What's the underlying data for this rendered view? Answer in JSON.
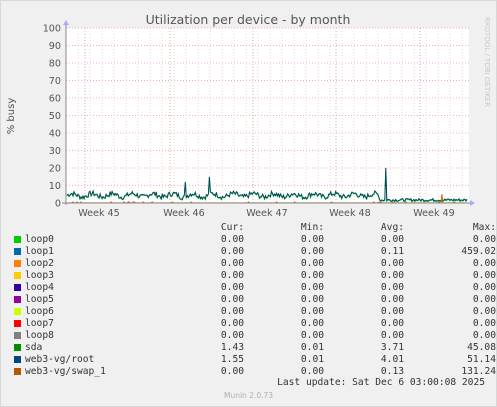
{
  "chart_data": {
    "type": "line",
    "title": "Utilization per device - by month",
    "ylabel": "% busy",
    "side_text": "RRDTOOL / TOBI OETIKER",
    "ylim": [
      0,
      100
    ],
    "yticks": [
      0,
      10,
      20,
      30,
      40,
      50,
      60,
      70,
      80,
      90,
      100
    ],
    "xticks": [
      "Week 45",
      "Week 46",
      "Week 47",
      "Week 48",
      "Week 49"
    ],
    "grid": true,
    "series": [
      {
        "name": "web3-vg/root",
        "color": "#00485e",
        "profile": "Values vary between about 2 and 7 % busy for most of the month, falling to about 1–3 % after Week 48.",
        "spikes": [
          {
            "at": "Week 46",
            "value": 12
          },
          {
            "at": "Week 46",
            "value": 15
          },
          {
            "at": "Week 48",
            "value": 20
          }
        ]
      },
      {
        "name": "web3-vg/swap_1",
        "color": "#cc6600",
        "profile": "Near 0 % busy, with one small spike shortly before Week 49.",
        "spikes": [
          {
            "at": "Week 49",
            "value": 5
          }
        ]
      },
      {
        "name": "sda",
        "color": "#00cc00",
        "profile": "Overlaps web3-vg/root, mostly hidden beneath it."
      }
    ]
  },
  "legend": {
    "headers": {
      "cur": "Cur:",
      "min": "Min:",
      "avg": "Avg:",
      "max": "Max:"
    },
    "rows": [
      {
        "name": "loop0",
        "color": "#00cc00",
        "cur": "0.00",
        "min": "0.00",
        "avg": "0.00",
        "max": "0.00"
      },
      {
        "name": "loop1",
        "color": "#0066b3",
        "cur": "0.00",
        "min": "0.00",
        "avg": "0.11",
        "max": "459.02"
      },
      {
        "name": "loop2",
        "color": "#ff8000",
        "cur": "0.00",
        "min": "0.00",
        "avg": "0.00",
        "max": "0.00"
      },
      {
        "name": "loop3",
        "color": "#ffcc00",
        "cur": "0.00",
        "min": "0.00",
        "avg": "0.00",
        "max": "0.00"
      },
      {
        "name": "loop4",
        "color": "#330099",
        "cur": "0.00",
        "min": "0.00",
        "avg": "0.00",
        "max": "0.00"
      },
      {
        "name": "loop5",
        "color": "#990099",
        "cur": "0.00",
        "min": "0.00",
        "avg": "0.00",
        "max": "0.00"
      },
      {
        "name": "loop6",
        "color": "#ccff00",
        "cur": "0.00",
        "min": "0.00",
        "avg": "0.00",
        "max": "0.00"
      },
      {
        "name": "loop7",
        "color": "#ff0000",
        "cur": "0.00",
        "min": "0.00",
        "avg": "0.00",
        "max": "0.00"
      },
      {
        "name": "loop8",
        "color": "#808080",
        "cur": "0.00",
        "min": "0.00",
        "avg": "0.00",
        "max": "0.00"
      },
      {
        "name": "sda",
        "color": "#008f00",
        "cur": "1.43",
        "min": "0.01",
        "avg": "3.71",
        "max": "45.08"
      },
      {
        "name": "web3-vg/root",
        "color": "#00487d",
        "cur": "1.55",
        "min": "0.01",
        "avg": "4.01",
        "max": "51.14"
      },
      {
        "name": "web3-vg/swap_1",
        "color": "#b35a00",
        "cur": "0.00",
        "min": "0.00",
        "avg": "0.13",
        "max": "131.24"
      }
    ]
  },
  "last_update": "Last update: Sat Dec  6 03:00:08 2025",
  "footer": "Munin 2.0.73"
}
